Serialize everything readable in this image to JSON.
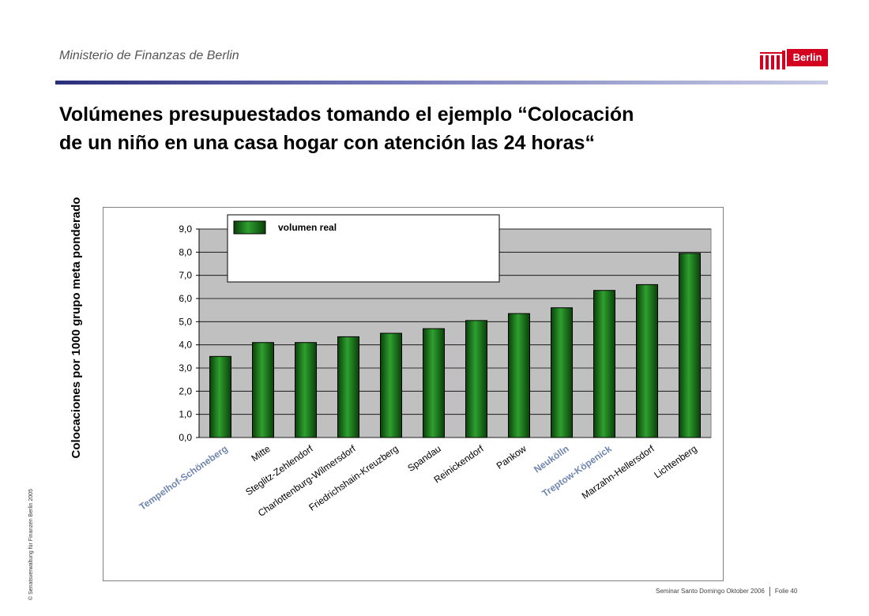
{
  "header": {
    "ministry": "Ministerio de Finanzas de Berlin",
    "logo_text": "Berlin"
  },
  "title_line1": "Volúmenes presupuestados tomando el ejemplo “Colocación",
  "title_line2": "de un niño en una casa hogar con atención las 24 horas“",
  "side_credit": "© Senatsverwaltung für Finanzen Berlin 2005",
  "footer": {
    "seminar": "Seminar Santo Domingo Oktober 2006",
    "slide": "Folie 40"
  },
  "colors": {
    "bar_dark": "#0a3f0a",
    "bar_light": "#2ea02e",
    "plot_bg": "#c0c0c0",
    "highlight_label": "#6f86b0"
  },
  "chart_data": {
    "type": "bar",
    "title": "",
    "xlabel": "",
    "ylabel": "Colocaciones por 1000 grupo meta ponderado",
    "ylim": [
      0,
      9
    ],
    "yticks": [
      "0,0",
      "1,0",
      "2,0",
      "3,0",
      "4,0",
      "5,0",
      "6,0",
      "7,0",
      "8,0",
      "9,0"
    ],
    "grid": true,
    "legend_position": "top-left",
    "categories": [
      "Tempelhof-Schöneberg",
      "Mitte",
      "Steglitz-Zehlendorf",
      "Charlottenburg-Wilmersdorf",
      "Friedrichshain-Kreuzberg",
      "Spandau",
      "Reinickendorf",
      "Pankow",
      "Neukölln",
      "Treptow-Köpenick",
      "Marzahn-Hellersdorf",
      "Lichtenberg"
    ],
    "highlighted": [
      "Tempelhof-Schöneberg",
      "Neukölln",
      "Treptow-Köpenick"
    ],
    "series": [
      {
        "name": "volumen real",
        "values": [
          3.5,
          4.1,
          4.1,
          4.35,
          4.5,
          4.7,
          5.05,
          5.35,
          5.6,
          6.35,
          6.6,
          7.95
        ]
      }
    ]
  }
}
